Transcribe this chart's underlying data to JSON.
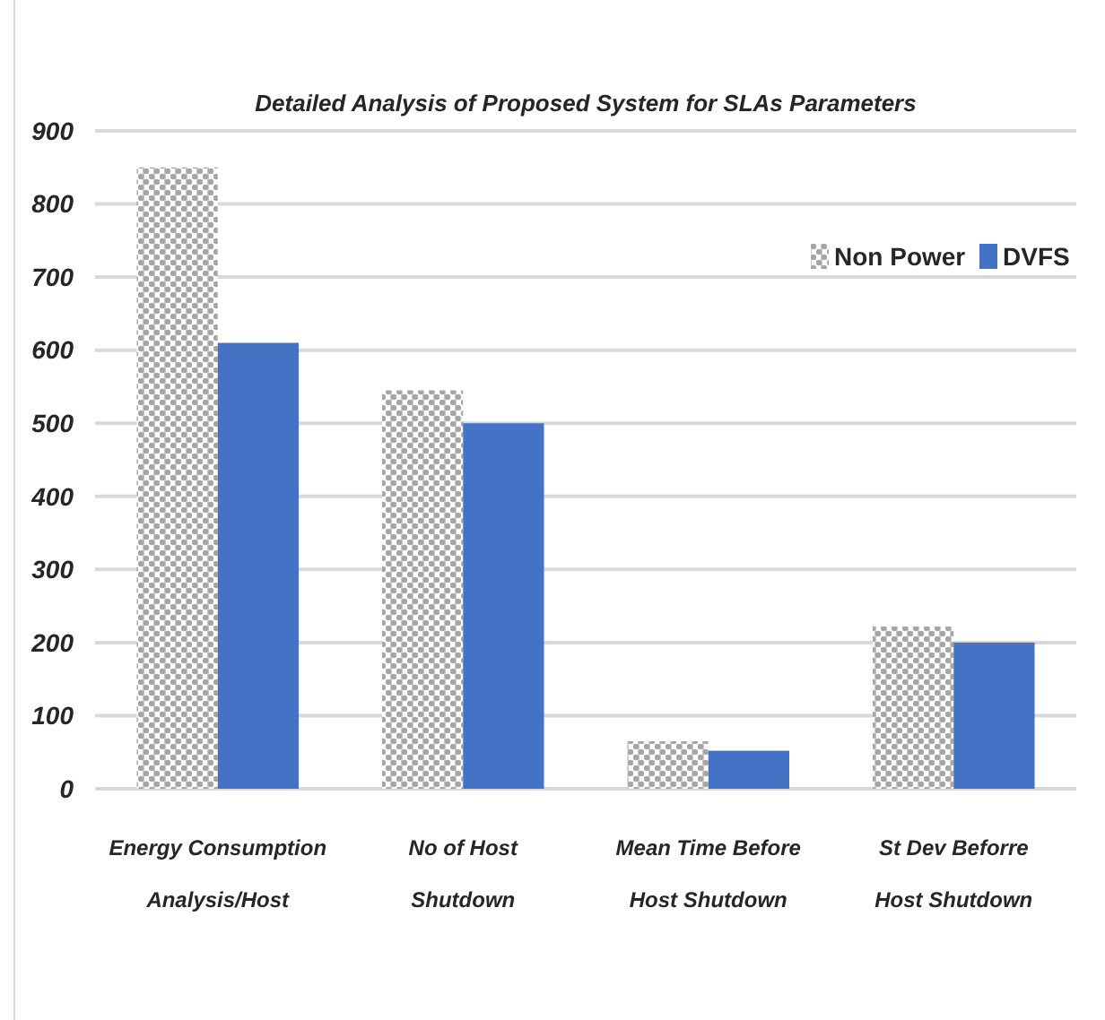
{
  "chart_data": {
    "type": "bar",
    "title": "Detailed Analysis of  Proposed System for SLAs Parameters",
    "categories": [
      "Energy Consumption Analysis/Host",
      "No of Host Shutdown",
      "Mean Time Before Host Shutdown",
      "St Dev Beforre Host Shutdown"
    ],
    "series": [
      {
        "name": "Non Power",
        "color": "#a6a6a6",
        "values": [
          850,
          545,
          65,
          222
        ]
      },
      {
        "name": "DVFS",
        "color": "#4472c4",
        "values": [
          610,
          500,
          52,
          200
        ]
      }
    ],
    "ylim": [
      0,
      900
    ],
    "yticks": [
      0,
      100,
      200,
      300,
      400,
      500,
      600,
      700,
      800,
      900
    ],
    "grid": "y",
    "legend": "top right"
  }
}
